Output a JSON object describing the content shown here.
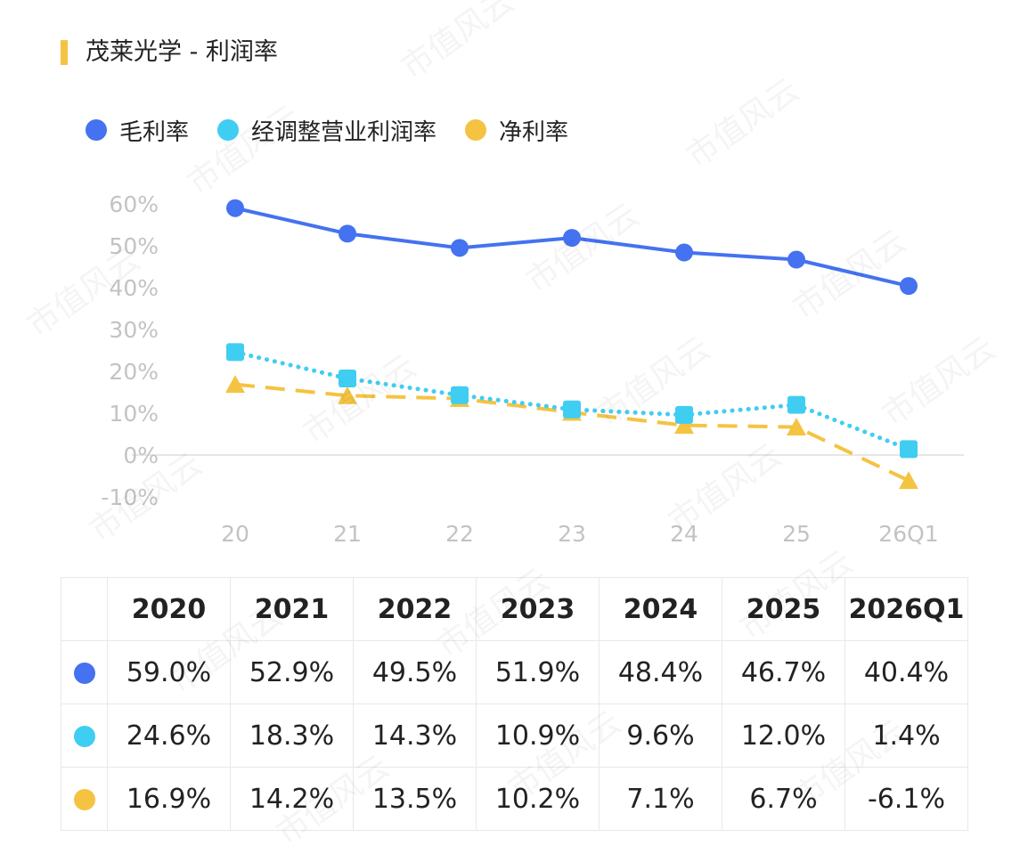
{
  "title": "茂莱光学 - 利润率",
  "watermark": "市值风云",
  "colors": {
    "gross": "#4472f0",
    "operating": "#40cdf2",
    "net": "#f5c342",
    "accent": "#f5c342",
    "grid": "#e6e6e6",
    "axis_text": "#c3c3c3"
  },
  "chart_data": {
    "type": "line",
    "categories": [
      "20",
      "21",
      "22",
      "23",
      "24",
      "25",
      "26Q1"
    ],
    "series": [
      {
        "name": "毛利率",
        "values": [
          59.0,
          52.9,
          49.5,
          51.9,
          48.4,
          46.7,
          40.4
        ],
        "marker": "circle",
        "line": "solid",
        "color": "#4472f0"
      },
      {
        "name": "经调整营业利润率",
        "values": [
          24.6,
          18.3,
          14.3,
          10.9,
          9.6,
          12.0,
          1.4
        ],
        "marker": "square",
        "line": "dotted",
        "color": "#40cdf2"
      },
      {
        "name": "净利率",
        "values": [
          16.9,
          14.2,
          13.5,
          10.2,
          7.1,
          6.7,
          -6.1
        ],
        "marker": "triangle",
        "line": "dashed",
        "color": "#f5c342"
      }
    ],
    "y_ticks": [
      "60%",
      "50%",
      "40%",
      "30%",
      "20%",
      "10%",
      "0%",
      "-10%"
    ],
    "ylim": [
      -10,
      60
    ],
    "grid": false,
    "legend_position": "top-left"
  },
  "table": {
    "headers": [
      "2020",
      "2021",
      "2022",
      "2023",
      "2024",
      "2025",
      "2026Q1"
    ],
    "rows": [
      {
        "series": "毛利率",
        "color": "#4472f0",
        "cells": [
          "59.0%",
          "52.9%",
          "49.5%",
          "51.9%",
          "48.4%",
          "46.7%",
          "40.4%"
        ]
      },
      {
        "series": "经调整营业利润率",
        "color": "#40cdf2",
        "cells": [
          "24.6%",
          "18.3%",
          "14.3%",
          "10.9%",
          "9.6%",
          "12.0%",
          "1.4%"
        ]
      },
      {
        "series": "净利率",
        "color": "#f5c342",
        "cells": [
          "16.9%",
          "14.2%",
          "13.5%",
          "10.2%",
          "7.1%",
          "6.7%",
          "-6.1%"
        ]
      }
    ]
  }
}
